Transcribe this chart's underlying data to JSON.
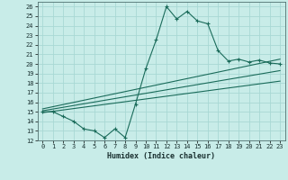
{
  "xlabel": "Humidex (Indice chaleur)",
  "background_color": "#c8ece8",
  "grid_color": "#a8d8d4",
  "line_color": "#1a6b5a",
  "xlim": [
    -0.5,
    23.5
  ],
  "ylim": [
    12,
    26.5
  ],
  "xticks": [
    0,
    1,
    2,
    3,
    4,
    5,
    6,
    7,
    8,
    9,
    10,
    11,
    12,
    13,
    14,
    15,
    16,
    17,
    18,
    19,
    20,
    21,
    22,
    23
  ],
  "yticks": [
    12,
    13,
    14,
    15,
    16,
    17,
    18,
    19,
    20,
    21,
    22,
    23,
    24,
    25,
    26
  ],
  "main_x": [
    0,
    1,
    2,
    3,
    4,
    5,
    6,
    7,
    8,
    9,
    10,
    11,
    12,
    13,
    14,
    15,
    16,
    17,
    18,
    19,
    20,
    21,
    22,
    23
  ],
  "main_y": [
    15.0,
    15.0,
    14.5,
    14.0,
    13.2,
    13.0,
    12.3,
    13.2,
    12.3,
    15.8,
    19.5,
    22.5,
    26.0,
    24.7,
    25.5,
    24.5,
    24.2,
    21.4,
    20.3,
    20.5,
    20.2,
    20.4,
    20.1,
    20.0
  ],
  "line1_x": [
    0,
    23
  ],
  "line1_y": [
    15.3,
    20.5
  ],
  "line2_x": [
    0,
    23
  ],
  "line2_y": [
    15.1,
    19.3
  ],
  "line3_x": [
    0,
    23
  ],
  "line3_y": [
    14.9,
    18.2
  ]
}
